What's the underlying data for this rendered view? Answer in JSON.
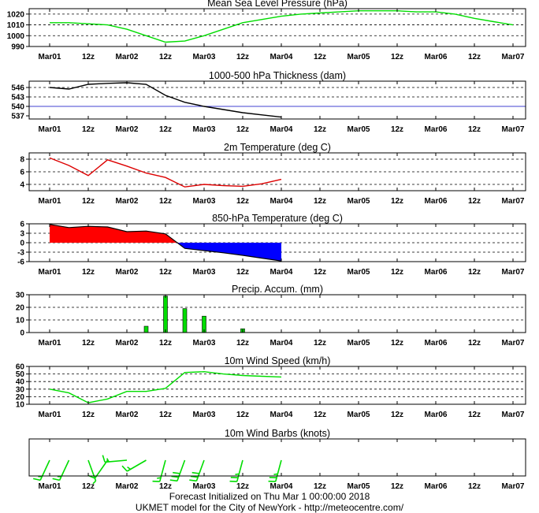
{
  "x_labels": [
    "Mar01",
    "12z",
    "Mar02",
    "12z",
    "Mar03",
    "12z",
    "Mar04",
    "12z",
    "Mar05",
    "12z",
    "Mar06",
    "12z",
    "Mar07"
  ],
  "chart_data": [
    {
      "id": "mslp",
      "type": "line",
      "title": "Mean Sea Level Pressure (hPa)",
      "x": [
        0,
        1,
        2,
        3,
        4,
        5,
        6,
        7,
        8,
        9,
        10,
        11,
        12
      ],
      "ylim": [
        990,
        1025
      ],
      "yticks": [
        990,
        1000,
        1010,
        1020
      ],
      "grid_y": [
        1000,
        1010,
        1020
      ],
      "series": [
        {
          "color": "#00dd00",
          "x": [
            0,
            0.5,
            1,
            1.5,
            2,
            2.5,
            3,
            3.5,
            4,
            4.5,
            5,
            5.5,
            6,
            6.5,
            7,
            7.5,
            8,
            8.5,
            9,
            9.5,
            10,
            10.5,
            11,
            11.5,
            12
          ],
          "values": [
            1012,
            1012,
            1011,
            1010,
            1006,
            1000,
            994,
            995,
            1000,
            1006,
            1012,
            1015,
            1018,
            1020,
            1021,
            1022,
            1023,
            1023,
            1023,
            1022,
            1022,
            1020,
            1016,
            1013,
            1010
          ]
        }
      ]
    },
    {
      "id": "thickness",
      "type": "line",
      "title": "1000-500 hPa Thickness (dam)",
      "ylim": [
        536,
        548
      ],
      "yticks": [
        537,
        540,
        543,
        546
      ],
      "grid_y": [
        543,
        546
      ],
      "reference_line": {
        "value": 540,
        "color": "#4040d0"
      },
      "series": [
        {
          "color": "#000000",
          "x": [
            0,
            0.5,
            1,
            1.5,
            2,
            2.5,
            3,
            3.5,
            4,
            4.5,
            5,
            5.5,
            6
          ],
          "values": [
            546,
            545.5,
            547,
            547.3,
            547.5,
            547,
            543.5,
            541.3,
            540,
            539,
            538,
            537.3,
            536.6
          ]
        }
      ]
    },
    {
      "id": "t2m",
      "type": "line",
      "title": "2m Temperature (deg C)",
      "ylim": [
        3,
        9
      ],
      "yticks": [
        4,
        6,
        8
      ],
      "grid_y": [
        4,
        6,
        8
      ],
      "series": [
        {
          "color": "#dd0000",
          "x": [
            0,
            0.5,
            1,
            1.5,
            2,
            2.5,
            3,
            3.5,
            4,
            4.5,
            5,
            5.5,
            6
          ],
          "values": [
            8.2,
            7.0,
            5.4,
            7.9,
            6.9,
            5.8,
            5.1,
            3.6,
            4.0,
            3.8,
            3.7,
            4.1,
            4.8
          ]
        }
      ]
    },
    {
      "id": "t850",
      "type": "area",
      "title": "850-hPa Temperature (deg C)",
      "ylim": [
        -6,
        6
      ],
      "yticks": [
        -6,
        -3,
        0,
        3,
        6
      ],
      "grid_y": [
        -3,
        0,
        3
      ],
      "positive_color": "#ff0000",
      "negative_color": "#0000ff",
      "series": [
        {
          "color": "#000000",
          "x": [
            0,
            0.5,
            1,
            1.5,
            2,
            2.5,
            3,
            3.5,
            4,
            4.5,
            5,
            5.5,
            6
          ],
          "values": [
            5.8,
            4.8,
            5.2,
            5.0,
            3.5,
            3.7,
            2.8,
            -1.8,
            -2.5,
            -3.2,
            -4.0,
            -4.9,
            -5.8
          ]
        }
      ]
    },
    {
      "id": "precip",
      "type": "bar",
      "title": "Precip. Accum. (mm)",
      "ylim": [
        0,
        30
      ],
      "yticks": [
        0,
        10,
        20,
        30
      ],
      "grid_y": [
        10,
        20,
        30
      ],
      "bar_color": "#00dd00",
      "series": [
        {
          "x": [
            2.5,
            3,
            3.5,
            4,
            5
          ],
          "values": [
            5,
            29,
            19,
            13,
            3
          ]
        }
      ]
    },
    {
      "id": "wind",
      "type": "line",
      "title": "10m Wind Speed (km/h)",
      "ylim": [
        10,
        60
      ],
      "yticks": [
        10,
        20,
        30,
        40,
        50,
        60
      ],
      "grid_y": [
        20,
        30,
        40,
        50,
        60
      ],
      "series": [
        {
          "color": "#00dd00",
          "x": [
            0,
            0.5,
            1,
            1.5,
            2,
            2.5,
            3,
            3.5,
            4,
            4.5,
            5,
            5.5,
            6
          ],
          "values": [
            30,
            25,
            12,
            17,
            27,
            27,
            31,
            52,
            53,
            50,
            48,
            47,
            46
          ]
        }
      ]
    },
    {
      "id": "barbs",
      "type": "wind_barbs",
      "title": "10m Wind Barbs  (knots)",
      "color": "#00dd00",
      "barbs": [
        {
          "x": 0,
          "dir_deg": 205,
          "speed_kt": 15
        },
        {
          "x": 0.5,
          "dir_deg": 205,
          "speed_kt": 15
        },
        {
          "x": 1,
          "dir_deg": 160,
          "speed_kt": 5
        },
        {
          "x": 1.5,
          "dir_deg": 215,
          "speed_kt": 10
        },
        {
          "x": 2,
          "dir_deg": 265,
          "speed_kt": 15
        },
        {
          "x": 2.5,
          "dir_deg": 240,
          "speed_kt": 15
        },
        {
          "x": 3,
          "dir_deg": 195,
          "speed_kt": 15
        },
        {
          "x": 3.5,
          "dir_deg": 200,
          "speed_kt": 30
        },
        {
          "x": 4,
          "dir_deg": 200,
          "speed_kt": 30
        },
        {
          "x": 5,
          "dir_deg": 195,
          "speed_kt": 25
        },
        {
          "x": 6,
          "dir_deg": 195,
          "speed_kt": 25
        }
      ]
    }
  ],
  "footer": {
    "line1": "Forecast Initialized on Thu Mar  1 00:00:00 2018",
    "line2": "UKMET model for the City of NewYork - http://meteocentre.com/"
  }
}
